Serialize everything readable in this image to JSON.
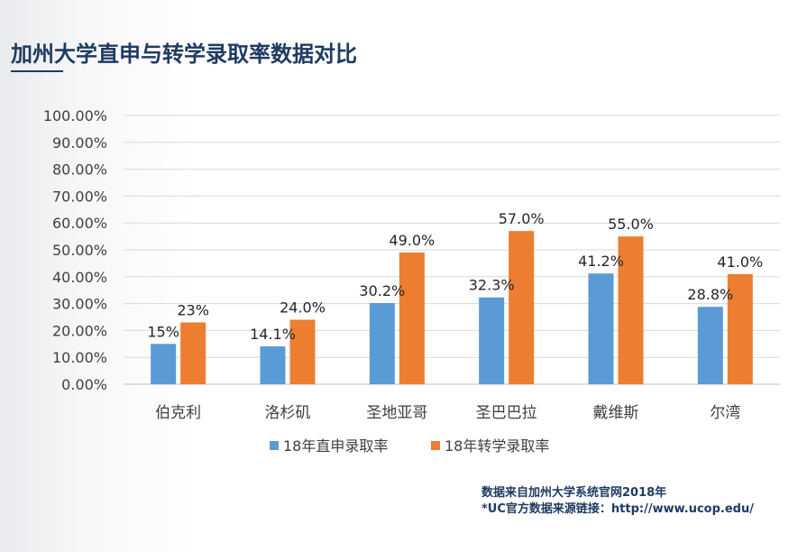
{
  "page": {
    "title": "加州大学直申与转学录取率数据对比"
  },
  "footer": {
    "source_line": "数据来自加州大学系统官网2018年",
    "link_line": "*UC官方数据来源链接：http://www.ucop.edu/"
  },
  "chart_data": {
    "type": "bar",
    "title": "",
    "xlabel": "",
    "ylabel": "",
    "ylim": [
      0,
      100
    ],
    "yticks": [
      "0.00%",
      "10.00%",
      "20.00%",
      "30.00%",
      "40.00%",
      "50.00%",
      "60.00%",
      "70.00%",
      "80.00%",
      "90.00%",
      "100.00%"
    ],
    "grid": true,
    "legend_position": "bottom",
    "categories": [
      "伯克利",
      "洛杉矶",
      "圣地亚哥",
      "圣巴巴拉",
      "戴维斯",
      "尔湾"
    ],
    "series": [
      {
        "name": "18年直申录取率",
        "color": "#5b9bd5",
        "values": [
          15,
          14.1,
          30.2,
          32.3,
          41.2,
          28.8
        ],
        "labels": [
          "15%",
          "14.1%",
          "30.2%",
          "32.3%",
          "41.2%",
          "28.8%"
        ]
      },
      {
        "name": "18年转学录取率",
        "color": "#ed7d31",
        "values": [
          23,
          24.0,
          49.0,
          57.0,
          55.0,
          41.0
        ],
        "labels": [
          "23%",
          "24.0%",
          "49.0%",
          "57.0%",
          "55.0%",
          "41.0%"
        ]
      }
    ]
  }
}
